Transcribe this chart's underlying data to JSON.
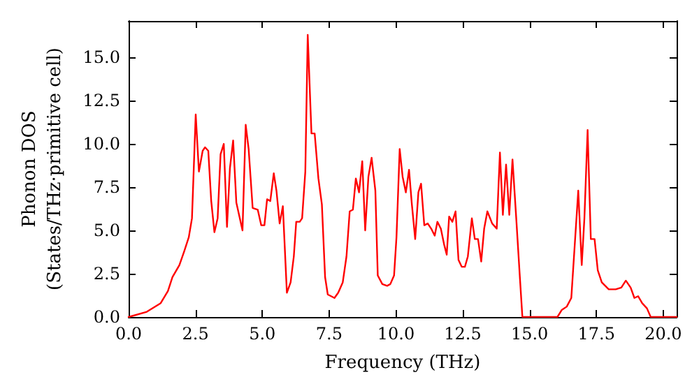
{
  "chart_data": {
    "type": "line",
    "xlabel": "Frequency (THz)",
    "ylabel": "Phonon DOS\n(States/THz·primitive cell)",
    "marker": "none",
    "grid": false,
    "xlim": [
      0,
      20.5
    ],
    "ylim": [
      0,
      17.1
    ],
    "xticks": [
      {
        "value": 0,
        "label": "0.0"
      },
      {
        "value": 2.5,
        "label": "2.5"
      },
      {
        "value": 5,
        "label": "5.0"
      },
      {
        "value": 7.5,
        "label": "7.5"
      },
      {
        "value": 10,
        "label": "10.0"
      },
      {
        "value": 12.5,
        "label": "12.5"
      },
      {
        "value": 15,
        "label": "15.0"
      },
      {
        "value": 17.5,
        "label": "17.5"
      },
      {
        "value": 20,
        "label": "20.0"
      }
    ],
    "yticks": [
      {
        "value": 0,
        "label": "0.0"
      },
      {
        "value": 2.5,
        "label": "2.5"
      },
      {
        "value": 5,
        "label": "5.0"
      },
      {
        "value": 7.5,
        "label": "7.5"
      },
      {
        "value": 10,
        "label": "10.0"
      },
      {
        "value": 12.5,
        "label": "12.5"
      },
      {
        "value": 15,
        "label": "15.0"
      }
    ],
    "series": [
      {
        "color": "#ff0000",
        "x": [
          0,
          0.68,
          1.2,
          1.47,
          1.64,
          1.9,
          2.08,
          2.25,
          2.37,
          2.51,
          2.63,
          2.77,
          2.86,
          2.98,
          3.09,
          3.21,
          3.33,
          3.44,
          3.56,
          3.68,
          3.79,
          3.91,
          4.03,
          4.26,
          4.38,
          4.49,
          4.64,
          4.83,
          4.96,
          5.08,
          5.18,
          5.3,
          5.43,
          5.53,
          5.65,
          5.77,
          5.92,
          6.06,
          6.18,
          6.27,
          6.4,
          6.49,
          6.61,
          6.7,
          6.84,
          6.96,
          7.1,
          7.23,
          7.35,
          7.45,
          7.7,
          7.84,
          8.01,
          8.15,
          8.27,
          8.39,
          8.5,
          8.62,
          8.74,
          8.85,
          8.97,
          9.09,
          9.23,
          9.32,
          9.49,
          9.67,
          9.79,
          9.93,
          10.02,
          10.14,
          10.25,
          10.37,
          10.49,
          10.59,
          10.72,
          10.84,
          10.94,
          11.06,
          11.19,
          11.32,
          11.45,
          11.55,
          11.68,
          11.8,
          11.9,
          11.99,
          12.11,
          12.23,
          12.34,
          12.46,
          12.58,
          12.69,
          12.84,
          12.95,
          13.07,
          13.19,
          13.3,
          13.42,
          13.6,
          13.77,
          13.89,
          14.0,
          14.12,
          14.24,
          14.36,
          14.5,
          14.64,
          14.73,
          16.04,
          16.2,
          16.39,
          16.56,
          16.82,
          16.95,
          17.05,
          17.17,
          17.29,
          17.43,
          17.55,
          17.7,
          17.96,
          18.22,
          18.43,
          18.6,
          18.78,
          18.92,
          19.06,
          19.21,
          19.39,
          19.53,
          20.5
        ],
        "values": [
          0,
          0.3,
          0.8,
          1.5,
          2.3,
          3.0,
          3.8,
          4.6,
          5.7,
          11.7,
          8.4,
          9.6,
          9.8,
          9.6,
          6.7,
          4.9,
          5.7,
          9.4,
          10.0,
          5.2,
          8.6,
          10.2,
          6.6,
          5.0,
          11.1,
          9.7,
          6.3,
          6.2,
          5.3,
          5.3,
          6.8,
          6.7,
          8.3,
          7.3,
          5.4,
          6.4,
          1.4,
          2.0,
          3.5,
          5.5,
          5.5,
          5.7,
          8.4,
          16.3,
          10.6,
          10.6,
          8.0,
          6.5,
          2.3,
          1.3,
          1.1,
          1.4,
          2.0,
          3.5,
          6.1,
          6.2,
          8.0,
          7.2,
          9.0,
          5.0,
          8.1,
          9.2,
          7.3,
          2.4,
          1.9,
          1.8,
          1.9,
          2.4,
          4.6,
          9.7,
          8.1,
          7.2,
          8.5,
          6.6,
          4.5,
          7.2,
          7.7,
          5.3,
          5.4,
          5.1,
          4.7,
          5.5,
          5.1,
          4.2,
          3.6,
          5.8,
          5.5,
          6.1,
          3.3,
          2.9,
          2.9,
          3.5,
          5.7,
          4.5,
          4.5,
          3.2,
          5.1,
          6.1,
          5.4,
          5.1,
          9.5,
          5.9,
          8.8,
          5.9,
          9.1,
          5.7,
          2.2,
          0,
          0,
          0.4,
          0.6,
          1.1,
          7.3,
          3.0,
          5.7,
          10.8,
          4.5,
          4.5,
          2.7,
          2.0,
          1.6,
          1.6,
          1.7,
          2.1,
          1.7,
          1.1,
          1.2,
          0.8,
          0.5,
          0,
          0
        ]
      }
    ]
  }
}
